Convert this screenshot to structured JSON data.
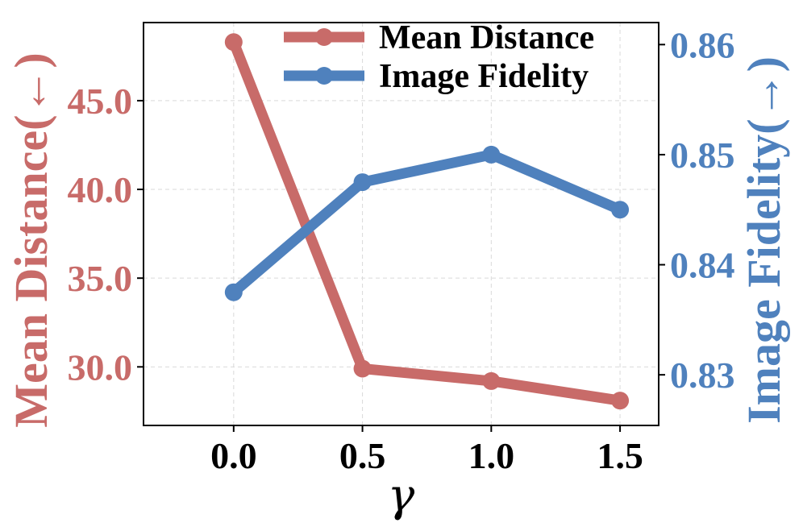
{
  "chart_data": {
    "type": "line",
    "x": [
      0.0,
      0.5,
      1.0,
      1.5
    ],
    "x_tick_labels": [
      "0.0",
      "0.5",
      "1.0",
      "1.5"
    ],
    "xlabel": "γ",
    "xlim": [
      -0.35,
      1.65
    ],
    "grid": true,
    "legend_position": "top-right",
    "series": [
      {
        "name": "Mean Distance",
        "axis": "left",
        "color": "#c86b69",
        "values": [
          48.3,
          29.9,
          29.2,
          28.1
        ]
      },
      {
        "name": "Image Fidelity",
        "axis": "right",
        "color": "#4f81bd",
        "values": [
          0.8375,
          0.8475,
          0.85,
          0.845
        ]
      }
    ],
    "left_axis": {
      "label": "Mean Distance(←)",
      "color": "#c86b69",
      "ylim": [
        26.7,
        49.4
      ],
      "ticks": [
        30.0,
        35.0,
        40.0,
        45.0
      ],
      "tick_labels": [
        "30.0",
        "35.0",
        "40.0",
        "45.0"
      ]
    },
    "right_axis": {
      "label": "Image Fidelity(→)",
      "color": "#4f81bd",
      "ylim": [
        0.8254,
        0.862
      ],
      "ticks": [
        0.83,
        0.84,
        0.85,
        0.86
      ],
      "tick_labels": [
        "0.83",
        "0.84",
        "0.85",
        "0.86"
      ]
    }
  }
}
